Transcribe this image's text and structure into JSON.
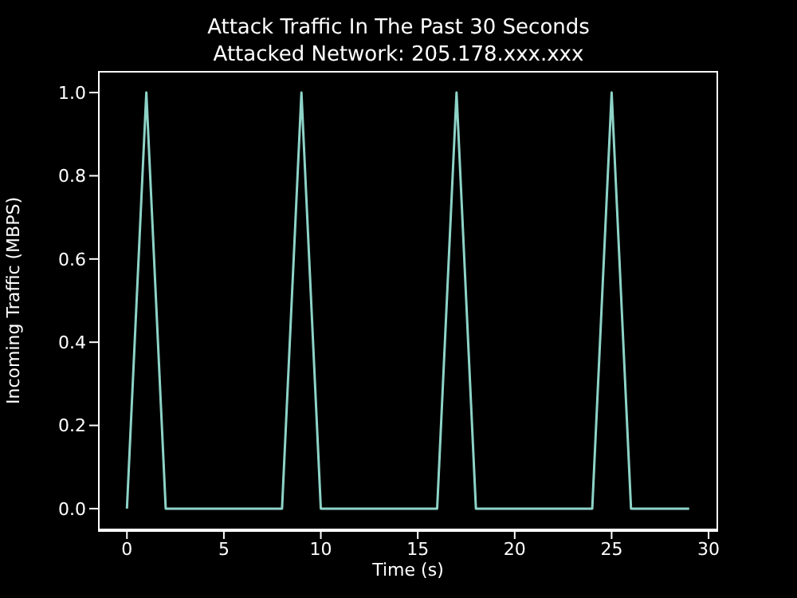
{
  "chart_data": {
    "type": "line",
    "title": "Attack Traffic In The Past 30 Seconds",
    "subtitle": "Attacked Network: 205.178.xxx.xxx",
    "xlabel": "Time (s)",
    "ylabel": "Incoming Traffic (MBPS)",
    "x": [
      0,
      1,
      2,
      3,
      4,
      5,
      6,
      7,
      8,
      9,
      10,
      11,
      12,
      13,
      14,
      15,
      16,
      17,
      18,
      19,
      20,
      21,
      22,
      23,
      24,
      25,
      26,
      27,
      28,
      29
    ],
    "series": [
      {
        "color": "#8dd3c7",
        "values": [
          0,
          1,
          0,
          0,
          0,
          0,
          0,
          0,
          0,
          1,
          0,
          0,
          0,
          0,
          0,
          0,
          0,
          1,
          0,
          0,
          0,
          0,
          0,
          0,
          0,
          1,
          0,
          0,
          0,
          0
        ]
      }
    ],
    "xlim": [
      -1.45,
      30.45
    ],
    "xticks": [
      0,
      5,
      10,
      15,
      20,
      25,
      30
    ],
    "ylim": [
      -0.05,
      1.05
    ],
    "yticks": [
      {
        "value": 0,
        "label": "0.0"
      },
      {
        "value": 0.2,
        "label": "0.2"
      },
      {
        "value": 0.4,
        "label": "0.4"
      },
      {
        "value": 0.6,
        "label": "0.6"
      },
      {
        "value": 0.8,
        "label": "0.8"
      },
      {
        "value": 1,
        "label": "1.0"
      }
    ],
    "grid": false,
    "legend": false,
    "marker": "none",
    "line_style": "solid"
  }
}
